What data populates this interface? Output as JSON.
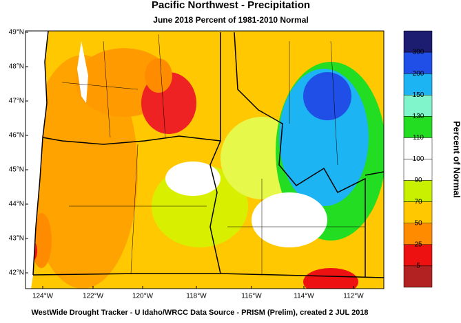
{
  "title": "Pacific Northwest - Precipitation",
  "subtitle": "June 2018  Percent of 1981-2010 Normal",
  "lat_labels": [
    "49°N",
    "48°N",
    "47°N",
    "46°N",
    "45°N",
    "44°N",
    "43°N",
    "42°N"
  ],
  "lon_labels": [
    "124°W",
    "122°W",
    "120°W",
    "118°W",
    "116°W",
    "114°W",
    "112°W"
  ],
  "colorbar": {
    "title": "Percent of Normal",
    "levels": [
      300,
      200,
      150,
      130,
      110,
      100,
      90,
      70,
      50,
      25,
      5
    ],
    "colors": [
      "#1c1c70",
      "#1f4fe6",
      "#1cb4f2",
      "#80f5cc",
      "#22dd22",
      "#ffffff",
      "#ffffff",
      "#c8f000",
      "#ffc800",
      "#ff8c00",
      "#ee1111",
      "#b22222"
    ]
  },
  "footer": "WestWide Drought Tracker - U Idaho/WRCC  Data Source - PRISM (Prelim), created  2 JUL 2018"
}
